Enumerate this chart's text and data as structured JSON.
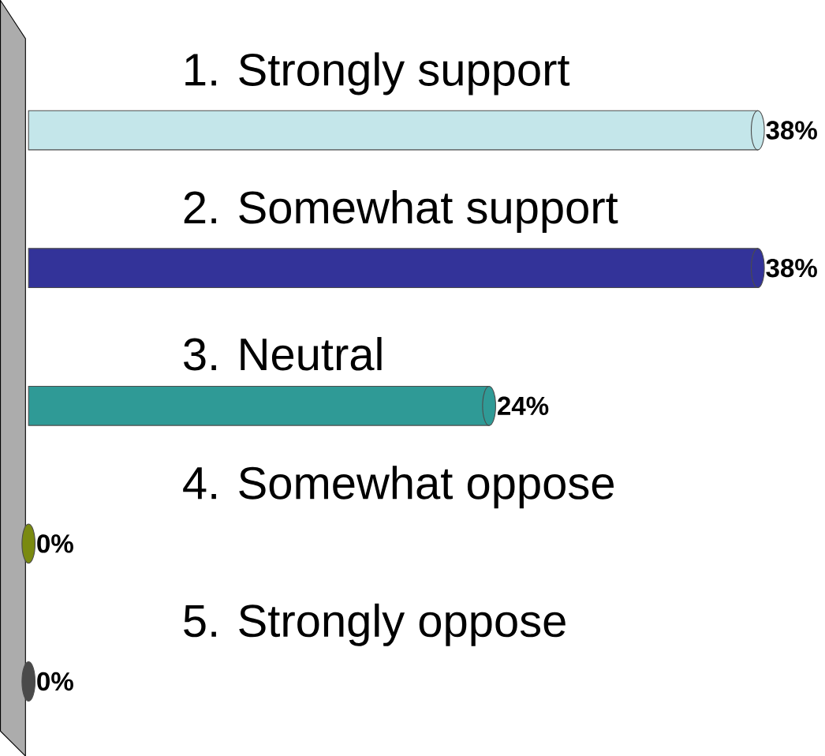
{
  "chart_data": {
    "type": "bar",
    "orientation": "horizontal",
    "categories": [
      "1.   Strongly support",
      "2.   Somewhat support",
      "3.   Neutral",
      "4.   Somewhat oppose",
      "5.   Strongly oppose"
    ],
    "values": [
      38,
      38,
      24,
      0,
      0
    ],
    "colors": [
      "#c4e6ea",
      "#333399",
      "#2f9a96",
      "#7a8a10",
      "#4a4a4a"
    ],
    "value_labels": [
      "38%",
      "38%",
      "24%",
      "0%",
      "0%"
    ]
  }
}
